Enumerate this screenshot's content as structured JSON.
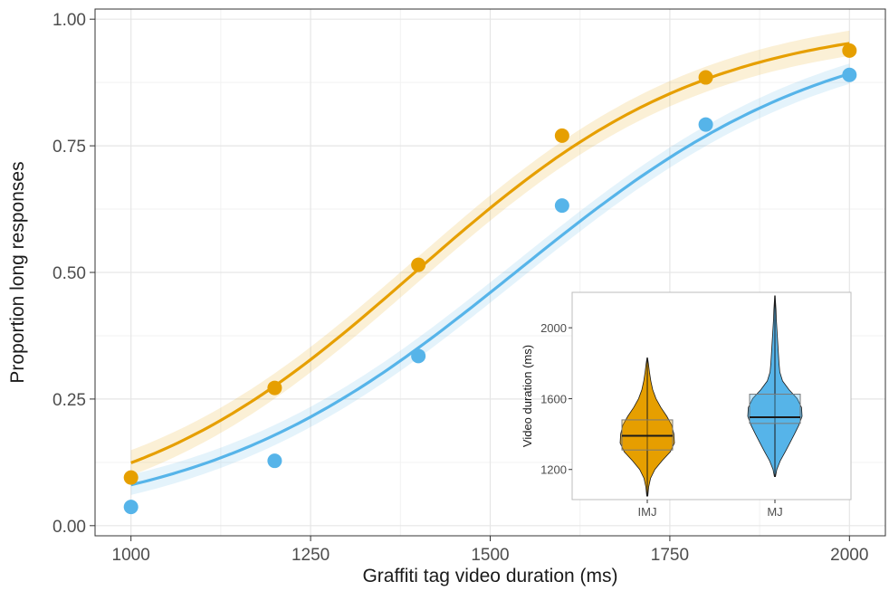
{
  "chart_data": [
    {
      "type": "scatter",
      "title": "",
      "xlabel": "Graffiti tag video duration (ms)",
      "ylabel": "Proportion long responses",
      "xlim": [
        950,
        2050
      ],
      "ylim": [
        -0.02,
        1.02
      ],
      "x_ticks": [
        1000,
        1250,
        1500,
        1750,
        2000
      ],
      "y_ticks": [
        0.0,
        0.25,
        0.5,
        0.75,
        1.0
      ],
      "x_tick_labels": [
        "1000",
        "1250",
        "1500",
        "1750",
        "2000"
      ],
      "y_tick_labels": [
        "0.00",
        "0.25",
        "0.50",
        "0.75",
        "1.00"
      ],
      "grid": true,
      "legend": "none",
      "series": [
        {
          "color": "#E69F00",
          "points": [
            {
              "x": 1000,
              "y": 0.095
            },
            {
              "x": 1200,
              "y": 0.272
            },
            {
              "x": 1400,
              "y": 0.515
            },
            {
              "x": 1600,
              "y": 0.77
            },
            {
              "x": 1800,
              "y": 0.885
            },
            {
              "x": 2000,
              "y": 0.938
            }
          ],
          "fit": {
            "kind": "logistic",
            "pse": 1395,
            "slope": 0.00495,
            "x_range": [
              1000,
              2000
            ],
            "band": 0.025
          }
        },
        {
          "color": "#56B4E9",
          "points": [
            {
              "x": 1000,
              "y": 0.037
            },
            {
              "x": 1200,
              "y": 0.128
            },
            {
              "x": 1400,
              "y": 0.335
            },
            {
              "x": 1600,
              "y": 0.632
            },
            {
              "x": 1800,
              "y": 0.792
            },
            {
              "x": 2000,
              "y": 0.89
            }
          ],
          "fit": {
            "kind": "logistic",
            "pse": 1535,
            "slope": 0.00455,
            "x_range": [
              1000,
              2000
            ],
            "band": 0.02
          }
        }
      ]
    },
    {
      "type": "violin",
      "title": "",
      "xlabel": "",
      "ylabel": "Video duration (ms)",
      "ylim": [
        1030,
        2200
      ],
      "y_ticks": [
        1200,
        1600,
        2000
      ],
      "y_tick_labels": [
        "1200",
        "1600",
        "2000"
      ],
      "categories": [
        "IMJ",
        "MJ"
      ],
      "grid": false,
      "groups": [
        {
          "label": "IMJ",
          "color": "#E69F00",
          "min": 1050,
          "q1": 1310,
          "median": 1390,
          "q3": 1480,
          "max": 1830,
          "density": [
            [
              1050,
              0.02
            ],
            [
              1100,
              0.05
            ],
            [
              1150,
              0.12
            ],
            [
              1200,
              0.28
            ],
            [
              1250,
              0.55
            ],
            [
              1300,
              0.85
            ],
            [
              1350,
              1.0
            ],
            [
              1400,
              0.98
            ],
            [
              1450,
              0.9
            ],
            [
              1500,
              0.72
            ],
            [
              1550,
              0.5
            ],
            [
              1600,
              0.32
            ],
            [
              1650,
              0.2
            ],
            [
              1700,
              0.13
            ],
            [
              1750,
              0.08
            ],
            [
              1800,
              0.04
            ],
            [
              1830,
              0.01
            ]
          ]
        },
        {
          "label": "MJ",
          "color": "#56B4E9",
          "min": 1160,
          "q1": 1460,
          "median": 1495,
          "q3": 1625,
          "max": 2180,
          "density": [
            [
              1160,
              0.02
            ],
            [
              1200,
              0.07
            ],
            [
              1250,
              0.2
            ],
            [
              1300,
              0.38
            ],
            [
              1350,
              0.55
            ],
            [
              1400,
              0.72
            ],
            [
              1450,
              0.88
            ],
            [
              1500,
              1.0
            ],
            [
              1550,
              0.98
            ],
            [
              1600,
              0.82
            ],
            [
              1650,
              0.52
            ],
            [
              1700,
              0.28
            ],
            [
              1750,
              0.18
            ],
            [
              1800,
              0.15
            ],
            [
              1850,
              0.13
            ],
            [
              1900,
              0.11
            ],
            [
              1950,
              0.09
            ],
            [
              2000,
              0.07
            ],
            [
              2050,
              0.05
            ],
            [
              2100,
              0.04
            ],
            [
              2150,
              0.02
            ],
            [
              2180,
              0.01
            ]
          ]
        }
      ]
    }
  ]
}
